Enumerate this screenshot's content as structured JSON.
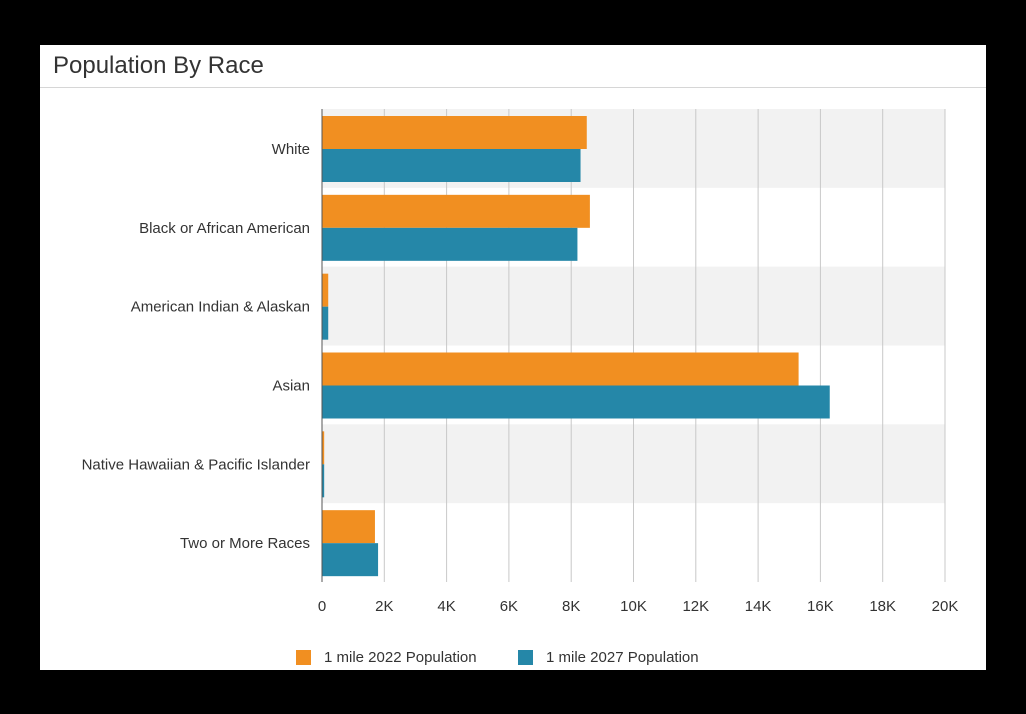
{
  "panel": {
    "title": "Population By Race"
  },
  "colors": {
    "series_2022": "#f18f21",
    "series_2027": "#2587a8",
    "band": "#f2f2f2",
    "grid": "#c8c8c8"
  },
  "chart_data": {
    "type": "bar",
    "orientation": "horizontal",
    "title": "Population By Race",
    "categories": [
      "White",
      "Black or African American",
      "American Indian & Alaskan",
      "Asian",
      "Native Hawaiian & Pacific Islander",
      "Two or More Races"
    ],
    "series": [
      {
        "name": "1 mile 2022 Population",
        "color": "#f18f21",
        "values": [
          8500,
          8600,
          200,
          15300,
          70,
          1700
        ]
      },
      {
        "name": "1 mile 2027 Population",
        "color": "#2587a8",
        "values": [
          8300,
          8200,
          200,
          16300,
          70,
          1800
        ]
      }
    ],
    "xlim": [
      0,
      20000
    ],
    "x_ticks": [
      0,
      2000,
      4000,
      6000,
      8000,
      10000,
      12000,
      14000,
      16000,
      18000,
      20000
    ],
    "x_tick_labels": [
      "0",
      "2K",
      "4K",
      "6K",
      "8K",
      "10K",
      "12K",
      "14K",
      "16K",
      "18K",
      "20K"
    ],
    "xlabel": "",
    "ylabel": "",
    "grid": true,
    "legend_position": "bottom"
  }
}
